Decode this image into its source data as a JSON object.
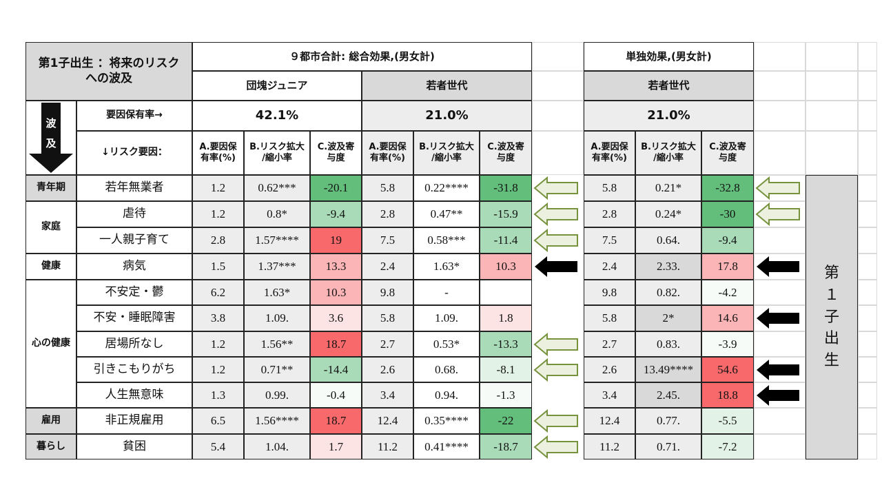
{
  "colors": {
    "gray": "#d9d9d9",
    "lightgray": "#ededed",
    "white": "#ffffff",
    "green_strong": "#63be7b",
    "green_mid": "#a9dbb8",
    "green_light": "#e3f2e6",
    "red_strong": "#f8696b",
    "red_mid": "#fbb5b6",
    "red_light": "#fde4e4"
  },
  "header": {
    "title": "第1子出生 ：将来のリスク\nへの波及",
    "total_effect": "９都市合計: 総合効果,(男女計)",
    "single_effect": "単独効果,(男女計)",
    "group_dankai": "団塊ジュニア",
    "group_wakamono": "若者世代",
    "group_wakamono_single": "若者世代",
    "wave_label": "波\n及",
    "factor_rate_label": "要因保有率→",
    "risk_factor_label": "↓リスク要因：",
    "rate_dankai": "42.1%",
    "rate_wakamono": "21.0%",
    "rate_single": "21.0%",
    "col_a": "A.要因保\n有率(%)",
    "col_b": "B.リスク拡大\n/縮小率",
    "col_c": "C.波及寄\n与度"
  },
  "categories": [
    "青年期",
    "家庭",
    "健康",
    "心の健康",
    "雇用",
    "暮らし"
  ],
  "side_label": "第\n１\n子\n出\n生",
  "rows": [
    {
      "factor": "若年無業者",
      "da": "1.2",
      "db": "0.62***",
      "dc": "-20.1",
      "wa": "5.8",
      "wb": "0.22****",
      "wc": "-31.8",
      "sa": "5.8",
      "sb": "0.21*",
      "sc": "-32.8"
    },
    {
      "factor": "虐待",
      "da": "1.2",
      "db": "0.8*",
      "dc": "-9.4",
      "wa": "2.8",
      "wb": "0.47**",
      "wc": "-15.9",
      "sa": "2.8",
      "sb": "0.24*",
      "sc": "-30"
    },
    {
      "factor": "一人親子育て",
      "da": "2.8",
      "db": "1.57****",
      "dc": "19",
      "wa": "7.5",
      "wb": "0.58***",
      "wc": "-11.4",
      "sa": "7.5",
      "sb": "0.64.",
      "sc": "-9.4"
    },
    {
      "factor": "病気",
      "da": "1.5",
      "db": "1.37***",
      "dc": "13.3",
      "wa": "2.4",
      "wb": "1.63*",
      "wc": "10.3",
      "sa": "2.4",
      "sb": "2.33.",
      "sc": "17.8"
    },
    {
      "factor": "不安定・鬱",
      "da": "6.2",
      "db": "1.63*",
      "dc": "10.3",
      "wa": "9.8",
      "wb": "-",
      "wc": "",
      "sa": "9.8",
      "sb": "0.82.",
      "sc": "-4.2"
    },
    {
      "factor": "不安・睡眠障害",
      "da": "3.8",
      "db": "1.09.",
      "dc": "3.6",
      "wa": "5.8",
      "wb": "1.09.",
      "wc": "1.8",
      "sa": "5.8",
      "sb": "2*",
      "sc": "14.6"
    },
    {
      "factor": "居場所なし",
      "da": "1.2",
      "db": "1.56**",
      "dc": "18.7",
      "wa": "2.7",
      "wb": "0.53*",
      "wc": "-13.3",
      "sa": "2.7",
      "sb": "0.83.",
      "sc": "-3.9"
    },
    {
      "factor": "引きこもりがち",
      "da": "1.2",
      "db": "0.71**",
      "dc": "-14.4",
      "wa": "2.6",
      "wb": "0.68.",
      "wc": "-8.1",
      "sa": "2.6",
      "sb": "13.49****",
      "sc": "54.6"
    },
    {
      "factor": "人生無意味",
      "da": "1.3",
      "db": "0.99.",
      "dc": "-0.4",
      "wa": "3.4",
      "wb": "0.94.",
      "wc": "-1.3",
      "sa": "3.4",
      "sb": "2.45.",
      "sc": "18.8"
    },
    {
      "factor": "非正規雇用",
      "da": "6.5",
      "db": "1.56****",
      "dc": "18.7",
      "wa": "12.4",
      "wb": "0.35****",
      "wc": "-22",
      "sa": "12.4",
      "sb": "0.77.",
      "sc": "-5.5"
    },
    {
      "factor": "貧困",
      "da": "5.4",
      "db": "1.04.",
      "dc": "1.7",
      "wa": "11.2",
      "wb": "0.41****",
      "wc": "-18.7",
      "sa": "11.2",
      "sb": "0.71.",
      "sc": "-7.2"
    }
  ]
}
